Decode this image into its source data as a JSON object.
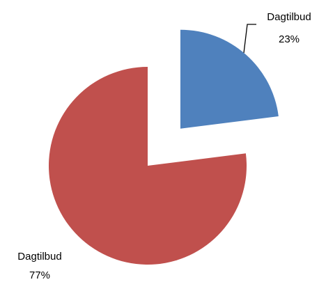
{
  "chart_data": {
    "type": "pie",
    "categories": [
      "Dagtilbud",
      "Dagtilbud"
    ],
    "values": [
      23,
      77
    ],
    "value_labels": [
      "23%",
      "77%"
    ],
    "colors": [
      "#4f81bd",
      "#c0504d"
    ]
  }
}
